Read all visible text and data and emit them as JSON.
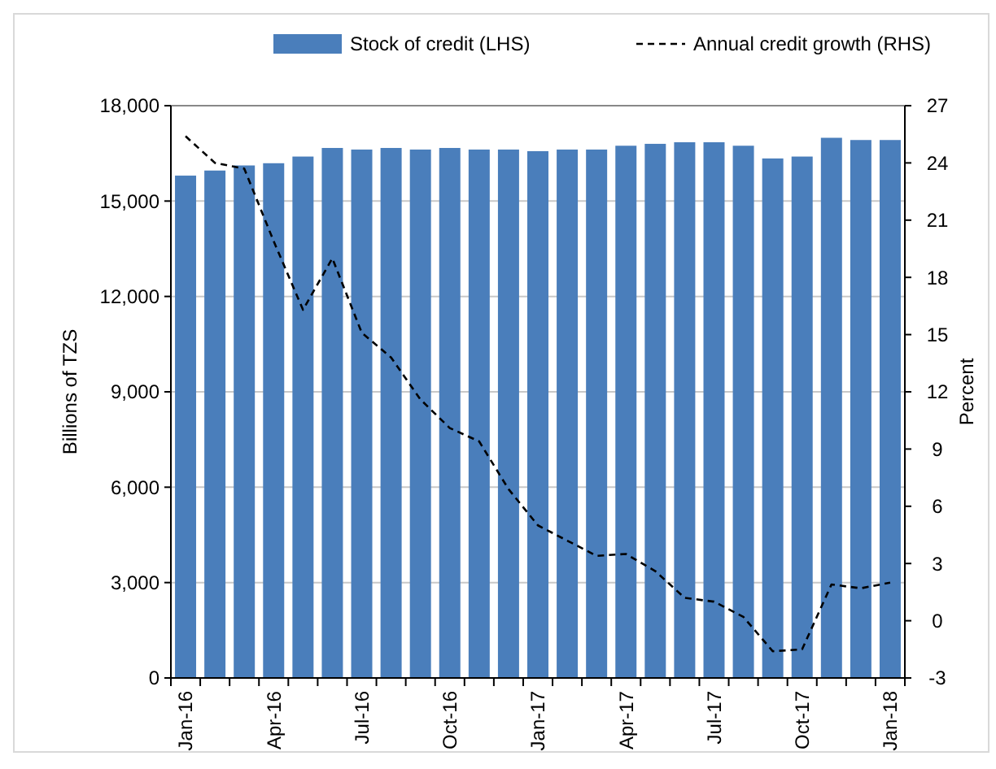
{
  "chart_data": {
    "type": "bar",
    "xlabel": null,
    "ylabel": "Billions of TZS",
    "y2label": "Percent",
    "categories": [
      "Jan-16",
      null,
      null,
      "Apr-16",
      null,
      null,
      "Jul-16",
      null,
      null,
      "Oct-16",
      null,
      null,
      "Jan-17",
      null,
      null,
      "Apr-17",
      null,
      null,
      "Jul-17",
      null,
      null,
      "Oct-17",
      null,
      null,
      "Jan-18"
    ],
    "series": [
      {
        "name": "Stock of credit (LHS)",
        "color": "#4a7ebb",
        "values": [
          15800,
          15960,
          16120,
          16190,
          16400,
          16670,
          16620,
          16670,
          16620,
          16670,
          16620,
          16620,
          16570,
          16620,
          16620,
          16740,
          16800,
          16850,
          16850,
          16740,
          16340,
          16400,
          16990,
          16920,
          16920
        ]
      },
      {
        "name": "Annual credit growth (RHS)",
        "type": "line",
        "axis": "y2",
        "color": "#000000",
        "line_style": "dashed",
        "values": [
          25.4,
          24.0,
          23.7,
          19.9,
          16.3,
          19.0,
          15.1,
          13.8,
          11.6,
          10.1,
          9.4,
          6.9,
          5.0,
          4.2,
          3.4,
          3.5,
          2.6,
          1.2,
          1.0,
          0.2,
          -1.6,
          -1.5,
          1.9,
          1.7,
          2.0
        ]
      }
    ],
    "ylim": [
      0,
      18000
    ],
    "yticks": [
      {
        "value": 0,
        "label": "0"
      },
      {
        "value": 3000,
        "label": "3,000"
      },
      {
        "value": 6000,
        "label": "6,000"
      },
      {
        "value": 9000,
        "label": "9,000"
      },
      {
        "value": 12000,
        "label": "12,000"
      },
      {
        "value": 15000,
        "label": "15,000"
      },
      {
        "value": 18000,
        "label": "18,000"
      }
    ],
    "y2lim": [
      -3,
      27
    ],
    "y2ticks": [
      -3,
      0,
      3,
      6,
      9,
      12,
      15,
      18,
      21,
      24,
      27
    ],
    "grid": "y",
    "legend": "top"
  }
}
